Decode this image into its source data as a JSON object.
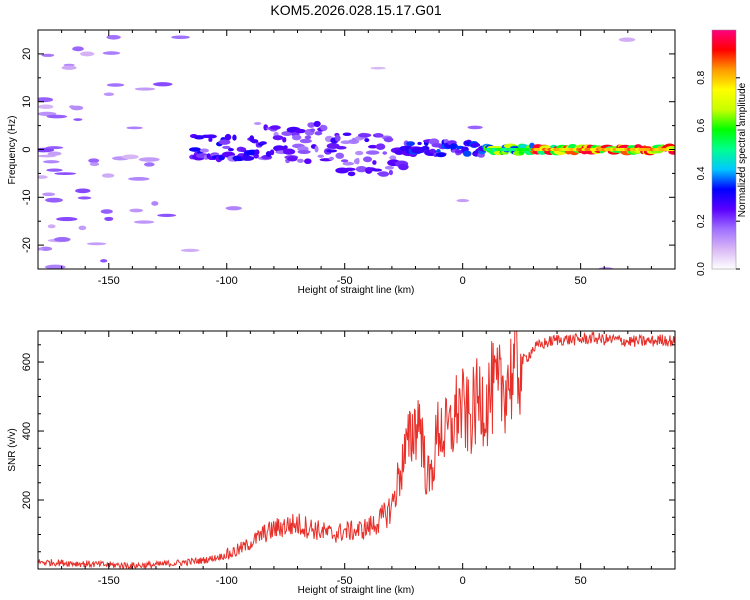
{
  "figure_title": "KOM5.2026.028.15.17.G01",
  "chart_data": [
    {
      "type": "heatmap",
      "id": "spectrogram",
      "title": "KOM5.2026.028.15.17.G01",
      "xlabel": "Height of straight line (km)",
      "ylabel": "Frequency (Hz)",
      "xlim": [
        -180,
        90
      ],
      "ylim": [
        -25,
        25
      ],
      "x_ticks": [
        -150,
        -100,
        -50,
        0,
        50
      ],
      "y_ticks": [
        -20,
        -10,
        0,
        10,
        20
      ],
      "colorbar": {
        "label": "Normalized spectral amplitude",
        "range": [
          0,
          1
        ],
        "ticks": [
          0.0,
          0.2,
          0.4,
          0.6,
          0.8
        ],
        "tick_labels": [
          "0.0",
          "0.2",
          "0.4",
          "0.6",
          "0.8"
        ],
        "colors": [
          "#ffffff",
          "#d9b8f5",
          "#a070ff",
          "#5a00ff",
          "#0000ff",
          "#00c8ff",
          "#00ff90",
          "#00ff00",
          "#c8ff00",
          "#ffff00",
          "#ff9a00",
          "#ff0000",
          "#ff0080"
        ]
      },
      "signal_band": [
        {
          "x_range": [
            -115,
            -85
          ],
          "freq_center": 0.5,
          "freq_halfwidth": 2.5,
          "amplitude": 0.25
        },
        {
          "x_range": [
            -85,
            -55
          ],
          "freq_center": 1.5,
          "freq_halfwidth": 4.0,
          "amplitude": 0.22
        },
        {
          "x_range": [
            -55,
            -25
          ],
          "freq_center": -1.0,
          "freq_halfwidth": 4.5,
          "amplitude": 0.22
        },
        {
          "x_range": [
            -25,
            10
          ],
          "freq_center": 0.3,
          "freq_halfwidth": 1.5,
          "amplitude": 0.3
        },
        {
          "x_range": [
            10,
            30
          ],
          "freq_center": 0.0,
          "freq_halfwidth": 0.8,
          "amplitude": 0.55
        },
        {
          "x_range": [
            30,
            90
          ],
          "freq_center": 0.0,
          "freq_halfwidth": 0.6,
          "amplitude": 0.8
        }
      ]
    },
    {
      "type": "line",
      "id": "snr",
      "xlabel": "Height of straight line (km)",
      "ylabel": "SNR (v/v)",
      "xlim": [
        -180,
        90
      ],
      "ylim": [
        0,
        690
      ],
      "x_ticks": [
        -150,
        -100,
        -50,
        0,
        50
      ],
      "y_ticks": [
        200,
        400,
        600
      ],
      "color": "#e8302a",
      "series": [
        {
          "name": "SNR",
          "x": [
            -180,
            -170,
            -160,
            -150,
            -140,
            -130,
            -120,
            -110,
            -100,
            -95,
            -90,
            -85,
            -80,
            -75,
            -70,
            -65,
            -60,
            -55,
            -50,
            -45,
            -40,
            -35,
            -30,
            -28,
            -25,
            -22,
            -20,
            -18,
            -16,
            -14,
            -12,
            -10,
            -8,
            -5,
            -2,
            0,
            3,
            5,
            8,
            10,
            12,
            15,
            18,
            20,
            23,
            25,
            28,
            30,
            35,
            40,
            45,
            50,
            55,
            60,
            65,
            70,
            75,
            80,
            85,
            90
          ],
          "y": [
            20,
            18,
            15,
            12,
            10,
            12,
            18,
            25,
            40,
            55,
            75,
            100,
            115,
            125,
            130,
            120,
            110,
            100,
            110,
            110,
            120,
            140,
            180,
            240,
            320,
            380,
            420,
            440,
            300,
            250,
            330,
            420,
            390,
            400,
            470,
            460,
            430,
            470,
            500,
            470,
            520,
            510,
            540,
            560,
            580,
            600,
            620,
            640,
            655,
            665,
            665,
            665,
            670,
            665,
            665,
            660,
            660,
            660,
            665,
            660
          ]
        }
      ]
    }
  ]
}
